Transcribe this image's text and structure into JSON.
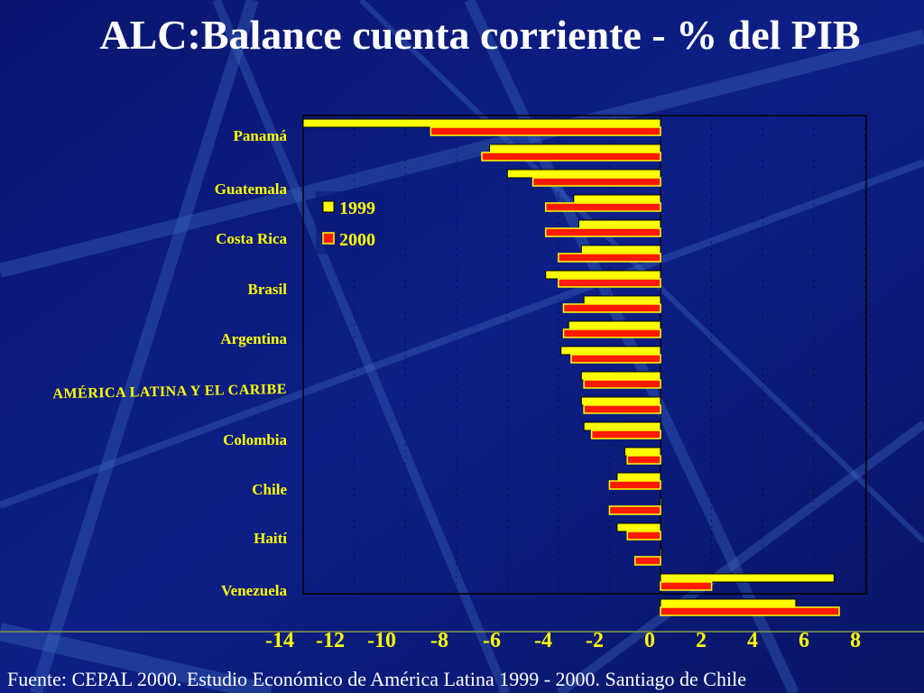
{
  "slide": {
    "title": "ALC:Balance cuenta corriente - % del PIB",
    "source": "Fuente: CEPAL 2000. Estudio Económico  de América Latina 1999 - 2000. Santiago de Chile"
  },
  "colors": {
    "background": "#0b1a7a",
    "bar_1999": "#ffff00",
    "bar_2000": "#ff1a00",
    "bar_2000_border": "#ffff00",
    "text": "#ffff00"
  },
  "chart_data": {
    "type": "bar",
    "orientation": "horizontal",
    "title": "ALC:Balance cuenta corriente - % del PIB",
    "xlim": [
      -14,
      8
    ],
    "x_ticks": [
      -14,
      -12,
      -10,
      -8,
      -6,
      -4,
      -2,
      0,
      2,
      4,
      6,
      8
    ],
    "x_tick_labels": [
      "-14",
      "-12",
      "-10",
      "-8",
      "-6",
      "-4",
      "-2",
      "0",
      "2",
      "4",
      "6",
      "8"
    ],
    "category_labels": [
      "Panamá",
      "Guatemala",
      "Costa Rica",
      "Brasil",
      "Argentina",
      "AMÉRICA LATINA Y EL CARIBE",
      "Colombia",
      "Chile",
      "Haití",
      "Venezuela"
    ],
    "legend": [
      "1999",
      "2000"
    ],
    "legend_position": "top-left",
    "series": [
      {
        "name": "1999",
        "values": [
          -14.0,
          -6.7,
          -6.0,
          -3.4,
          -3.2,
          -3.1,
          -4.5,
          -3.0,
          -3.6,
          -3.9,
          -3.1,
          -3.1,
          -3.0,
          -1.4,
          -1.7,
          0.0,
          -1.7,
          0.0,
          6.8,
          5.3
        ]
      },
      {
        "name": "2000",
        "values": [
          -9.0,
          -7.0,
          -5.0,
          -4.5,
          -4.5,
          -4.0,
          -4.0,
          -3.8,
          -3.8,
          -3.5,
          -3.0,
          -3.0,
          -2.7,
          -1.3,
          -2.0,
          -2.0,
          -1.3,
          -1.0,
          2.0,
          7.0
        ]
      }
    ]
  }
}
